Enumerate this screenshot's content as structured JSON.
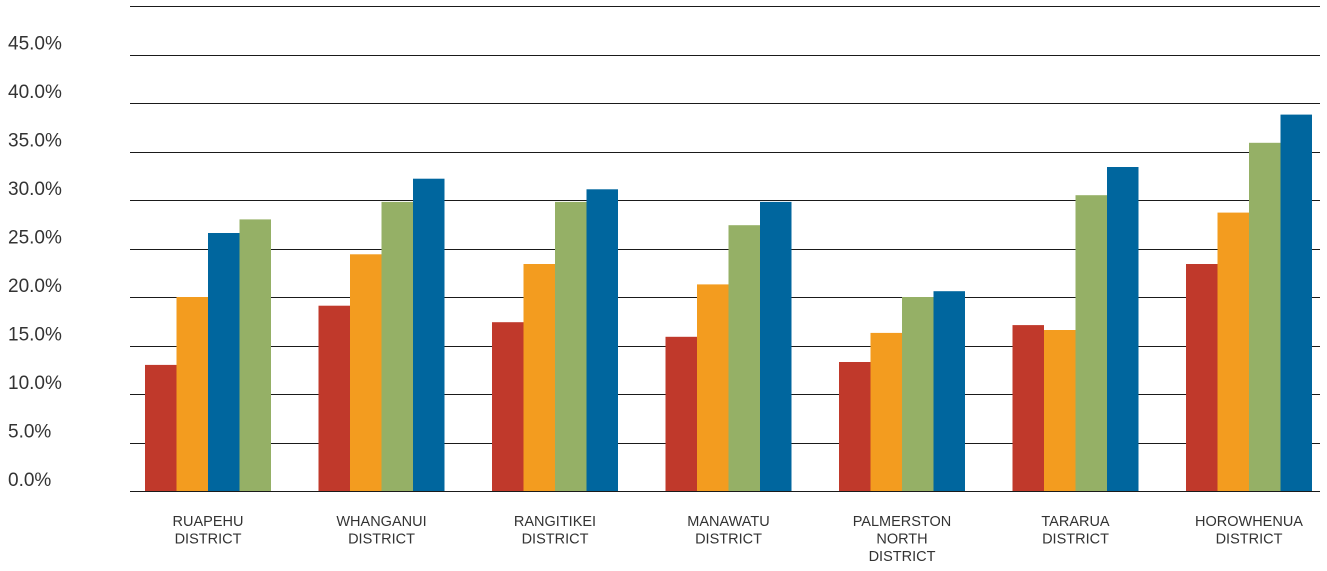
{
  "chart_data": {
    "type": "bar",
    "title": "",
    "xlabel": "",
    "ylabel": "",
    "ylim": [
      0,
      50
    ],
    "grid": true,
    "legend": "none",
    "yticks": [
      "0.0%",
      "5.0%",
      "10.0%",
      "15.0%",
      "20.0%",
      "25.0%",
      "30.0%",
      "35.0%",
      "40.0%",
      "45.0%"
    ],
    "categories": [
      [
        "RUAPEHU",
        "DISTRICT"
      ],
      [
        "WHANGANUI",
        "DISTRICT"
      ],
      [
        "RANGITIKEI",
        "DISTRICT"
      ],
      [
        "MANAWATU",
        "DISTRICT"
      ],
      [
        "PALMERSTON",
        "NORTH",
        "DISTRICT"
      ],
      [
        "TARARUA",
        "DISTRICT"
      ],
      [
        "HOROWHENUA",
        "DISTRICT"
      ]
    ],
    "series_colors": [
      "#c0392b",
      "#f39c1f",
      "#95b066",
      "#00669e"
    ],
    "groups": [
      [
        {
          "value": 13.0,
          "color": "#c0392b"
        },
        {
          "value": 20.0,
          "color": "#f39c1f"
        },
        {
          "value": 26.6,
          "color": "#00669e"
        },
        {
          "value": 28.0,
          "color": "#95b066"
        }
      ],
      [
        {
          "value": 19.1,
          "color": "#c0392b"
        },
        {
          "value": 24.4,
          "color": "#f39c1f"
        },
        {
          "value": 29.8,
          "color": "#95b066"
        },
        {
          "value": 32.2,
          "color": "#00669e"
        }
      ],
      [
        {
          "value": 17.4,
          "color": "#c0392b"
        },
        {
          "value": 23.4,
          "color": "#f39c1f"
        },
        {
          "value": 29.8,
          "color": "#95b066"
        },
        {
          "value": 31.1,
          "color": "#00669e"
        }
      ],
      [
        {
          "value": 15.9,
          "color": "#c0392b"
        },
        {
          "value": 21.3,
          "color": "#f39c1f"
        },
        {
          "value": 27.4,
          "color": "#95b066"
        },
        {
          "value": 29.8,
          "color": "#00669e"
        }
      ],
      [
        {
          "value": 13.3,
          "color": "#c0392b"
        },
        {
          "value": 16.3,
          "color": "#f39c1f"
        },
        {
          "value": 20.0,
          "color": "#95b066"
        },
        {
          "value": 20.6,
          "color": "#00669e"
        }
      ],
      [
        {
          "value": 17.1,
          "color": "#c0392b"
        },
        {
          "value": 16.6,
          "color": "#f39c1f"
        },
        {
          "value": 30.5,
          "color": "#95b066"
        },
        {
          "value": 33.4,
          "color": "#00669e"
        }
      ],
      [
        {
          "value": 23.4,
          "color": "#c0392b"
        },
        {
          "value": 28.7,
          "color": "#f39c1f"
        },
        {
          "value": 35.9,
          "color": "#95b066"
        },
        {
          "value": 38.8,
          "color": "#00669e"
        }
      ]
    ]
  }
}
